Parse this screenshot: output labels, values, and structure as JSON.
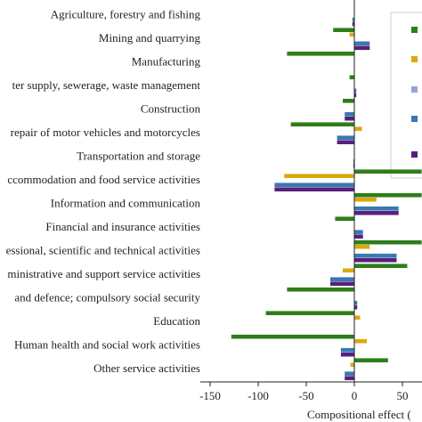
{
  "chart_data": {
    "type": "bar",
    "orientation": "horizontal",
    "title": "",
    "xlabel": "Compositional effect (",
    "ylabel": "",
    "xlim": [
      -150,
      70
    ],
    "x_ticks": [
      -150,
      -100,
      -50,
      0,
      50
    ],
    "grid": false,
    "legend_position": "top-right (partially visible, cropped)",
    "legend_labels": [
      "",
      "",
      "",
      "",
      ""
    ],
    "categories": [
      "Agriculture, forestry and fishing",
      "Mining and quarrying",
      "Manufacturing",
      "ter supply, sewerage, waste management",
      "Construction",
      "repair of motor vehicles and motorcycles",
      "Transportation and storage",
      "ccommodation and food service activities",
      "Information and communication",
      "Financial and insurance activities",
      "essional, scientific and technical activities",
      "ministrative and support service activities",
      " and defence; compulsory social security",
      "Education",
      "Human health and social work activities",
      "Other service activities"
    ],
    "series": [
      {
        "color": "#2e7d1a",
        "values": [
          0,
          -22,
          -70,
          -5,
          -12,
          -66,
          0,
          70,
          70,
          -20,
          70,
          55,
          -70,
          -92,
          -128,
          35
        ]
      },
      {
        "color": "#d9a90e",
        "values": [
          0,
          -5,
          0,
          0,
          0,
          8,
          0,
          -73,
          23,
          0,
          16,
          -12,
          0,
          6,
          13,
          -4
        ]
      },
      {
        "color": "#9aa3d6",
        "values": [
          0,
          0,
          0,
          0,
          0,
          0,
          0,
          0,
          0,
          0,
          0,
          0,
          0,
          0,
          0,
          0
        ]
      },
      {
        "color": "#3a78b0",
        "values": [
          -2,
          16,
          0,
          2,
          -10,
          -18,
          -1,
          -83,
          46,
          9,
          44,
          -25,
          3,
          0,
          -14,
          -10
        ]
      },
      {
        "color": "#55207e",
        "values": [
          -2,
          16,
          0,
          2,
          -10,
          -18,
          -1,
          -83,
          46,
          9,
          44,
          -25,
          3,
          0,
          -14,
          -10
        ]
      }
    ]
  },
  "colors": {
    "axis": "#222222",
    "legend_border": "#cccccc"
  }
}
